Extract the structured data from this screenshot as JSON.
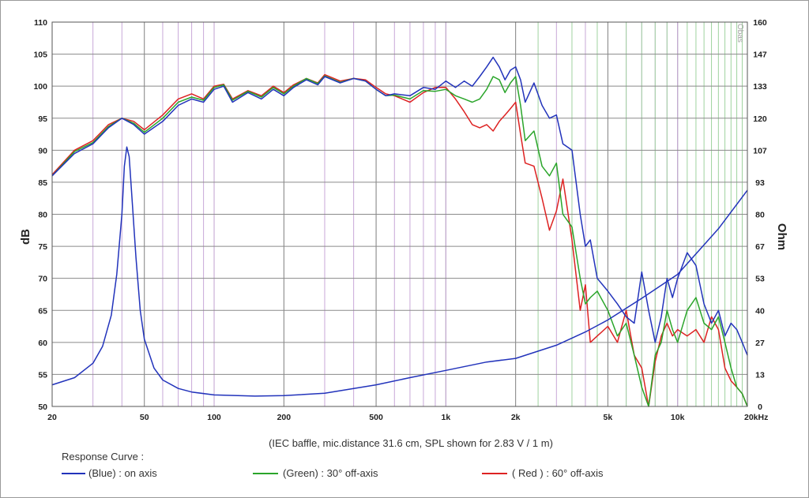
{
  "chart_data": {
    "type": "line",
    "xscale": "log",
    "xlim": [
      20,
      20000
    ],
    "ylim_left": [
      50,
      110
    ],
    "ylim_right": [
      0,
      160
    ],
    "ylabel_left": "dB",
    "ylabel_right": "Ohm",
    "grid": true,
    "x_ticks": [
      {
        "value": 20,
        "label": "20"
      },
      {
        "value": 50,
        "label": "50"
      },
      {
        "value": 100,
        "label": "100"
      },
      {
        "value": 200,
        "label": "200"
      },
      {
        "value": 500,
        "label": "500"
      },
      {
        "value": 1000,
        "label": "1k"
      },
      {
        "value": 2000,
        "label": "2k"
      },
      {
        "value": 5000,
        "label": "5k"
      },
      {
        "value": 10000,
        "label": "10k"
      },
      {
        "value": 20000,
        "label": "20kHz"
      }
    ],
    "y_ticks_left": [
      "110",
      "105",
      "100",
      "95",
      "90",
      "85",
      "80",
      "75",
      "70",
      "65",
      "60",
      "55",
      "50"
    ],
    "y_ticks_right": [
      "160",
      "147",
      "133",
      "120",
      "107",
      "93",
      "80",
      "67",
      "53",
      "40",
      "27",
      "13",
      "0"
    ],
    "watermark": "Obas",
    "caption": "(IEC baffle, mic.distance 31.6 cm, SPL shown for 2.83 V / 1 m)",
    "legend": {
      "title": "Response Curve :",
      "items": [
        {
          "label": "(Blue)  : on axis",
          "color": "#2233bb"
        },
        {
          "label": "(Green) : 30° off-axis",
          "color": "#2aa52a"
        },
        {
          "label": "( Red ) : 60° off-axis",
          "color": "#dd2222"
        }
      ]
    },
    "series": [
      {
        "label": "on axis",
        "color": "#2233bb",
        "axis": "left",
        "x": [
          20,
          25,
          30,
          35,
          40,
          45,
          50,
          60,
          70,
          80,
          90,
          100,
          110,
          120,
          140,
          160,
          180,
          200,
          220,
          250,
          280,
          300,
          350,
          400,
          450,
          500,
          550,
          600,
          700,
          800,
          900,
          1000,
          1100,
          1200,
          1300,
          1400,
          1500,
          1600,
          1700,
          1800,
          1900,
          2000,
          2100,
          2200,
          2400,
          2600,
          2800,
          3000,
          3200,
          3500,
          3800,
          4000,
          4200,
          4500,
          5000,
          5500,
          6000,
          6500,
          7000,
          7500,
          8000,
          8500,
          9000,
          9500,
          10000,
          11000,
          12000,
          13000,
          14000,
          15000,
          16000,
          17000,
          18000,
          19000,
          20000
        ],
        "y": [
          86,
          89.5,
          91,
          93.5,
          95,
          94,
          92.5,
          94.5,
          97,
          98,
          97.5,
          99.5,
          100,
          97.5,
          99,
          98,
          99.5,
          98.5,
          99.8,
          101,
          100.2,
          101.5,
          100.5,
          101.2,
          100.8,
          99.5,
          98.5,
          98.8,
          98.5,
          99.8,
          99.5,
          100.8,
          99.8,
          100.8,
          100,
          101.5,
          103,
          104.5,
          103,
          101,
          102.5,
          103,
          101,
          97.5,
          100.5,
          97,
          95,
          95.5,
          91,
          90,
          80,
          75,
          76,
          70,
          68,
          66,
          64,
          63,
          71,
          65,
          60,
          64,
          70,
          67,
          70,
          74,
          72,
          66,
          63,
          65,
          61,
          63,
          62,
          60,
          58
        ]
      },
      {
        "label": "30° off-axis",
        "color": "#2aa52a",
        "axis": "left",
        "x": [
          20,
          25,
          30,
          35,
          40,
          45,
          50,
          60,
          70,
          80,
          90,
          100,
          110,
          120,
          140,
          160,
          180,
          200,
          220,
          250,
          280,
          300,
          350,
          400,
          450,
          500,
          550,
          600,
          700,
          800,
          900,
          1000,
          1100,
          1200,
          1300,
          1400,
          1500,
          1600,
          1700,
          1800,
          1900,
          2000,
          2100,
          2200,
          2400,
          2600,
          2800,
          3000,
          3200,
          3500,
          3800,
          4000,
          4200,
          4500,
          5000,
          5500,
          6000,
          6500,
          7000,
          7500,
          8000,
          8500,
          9000,
          9500,
          10000,
          11000,
          12000,
          13000,
          14000,
          15000,
          16000,
          17000,
          18000,
          19000,
          20000
        ],
        "y": [
          86,
          89.8,
          91.2,
          93.7,
          95,
          94.2,
          92.8,
          95,
          97.5,
          98.3,
          97.8,
          99.8,
          100.2,
          97.8,
          99.2,
          98.3,
          99.8,
          98.8,
          100,
          101.2,
          100.4,
          101.6,
          100.6,
          101.2,
          100.8,
          99.5,
          98.5,
          98.6,
          98,
          99.3,
          99.2,
          99.5,
          98.5,
          98,
          97.5,
          98,
          99.5,
          101.5,
          101,
          99,
          100.5,
          101.5,
          97,
          91.5,
          93,
          87.5,
          86,
          88,
          80,
          78,
          70,
          66,
          67,
          68,
          65,
          61,
          63,
          58,
          53,
          48,
          58,
          60,
          65,
          62,
          60,
          65,
          67,
          63,
          62,
          64,
          60,
          56,
          53,
          52,
          50
        ]
      },
      {
        "label": "60° off-axis",
        "color": "#dd2222",
        "axis": "left",
        "x": [
          20,
          25,
          30,
          35,
          40,
          45,
          50,
          60,
          70,
          80,
          90,
          100,
          110,
          120,
          140,
          160,
          180,
          200,
          220,
          250,
          280,
          300,
          350,
          400,
          450,
          500,
          550,
          600,
          700,
          800,
          900,
          1000,
          1100,
          1200,
          1300,
          1400,
          1500,
          1600,
          1700,
          1800,
          1900,
          2000,
          2100,
          2200,
          2400,
          2600,
          2800,
          3000,
          3200,
          3500,
          3800,
          4000,
          4200,
          4500,
          5000,
          5500,
          6000,
          6500,
          7000,
          7500,
          8000,
          8500,
          9000,
          9500,
          10000,
          11000,
          12000,
          13000,
          14000,
          15000,
          16000,
          17000,
          18000,
          19000,
          20000
        ],
        "y": [
          86.2,
          90,
          91.5,
          94,
          95,
          94.5,
          93.2,
          95.5,
          98,
          98.8,
          98,
          100,
          100.3,
          98,
          99.3,
          98.5,
          100,
          99,
          100.2,
          101.2,
          100.5,
          101.8,
          100.8,
          101.2,
          101,
          99.8,
          98.8,
          98.5,
          97.5,
          99,
          99.8,
          99.8,
          98,
          96,
          94,
          93.5,
          94,
          93,
          94.5,
          95.5,
          96.5,
          97.5,
          92.5,
          88,
          87.5,
          82.5,
          77.5,
          80.5,
          85.5,
          76,
          65,
          69,
          60,
          61,
          62.5,
          60,
          65,
          58,
          56,
          50,
          57,
          61,
          63,
          61,
          62,
          61,
          62,
          60,
          64,
          62,
          56,
          54,
          53,
          52,
          50
        ]
      },
      {
        "label": "impedance",
        "color": "#2233bb",
        "axis": "right",
        "x": [
          20,
          25,
          30,
          33,
          36,
          38,
          40,
          41,
          42,
          43,
          44,
          46,
          48,
          50,
          55,
          60,
          70,
          80,
          100,
          150,
          200,
          300,
          500,
          700,
          1000,
          1500,
          2000,
          3000,
          4000,
          5000,
          7000,
          10000,
          15000,
          20000
        ],
        "y": [
          9,
          12,
          18,
          25,
          38,
          55,
          80,
          100,
          108,
          104,
          90,
          62,
          40,
          28,
          16,
          11,
          7.5,
          6,
          4.8,
          4.3,
          4.5,
          5.5,
          9,
          12,
          15,
          18.5,
          20,
          25.5,
          31,
          36,
          45,
          55,
          74,
          90
        ]
      }
    ]
  }
}
